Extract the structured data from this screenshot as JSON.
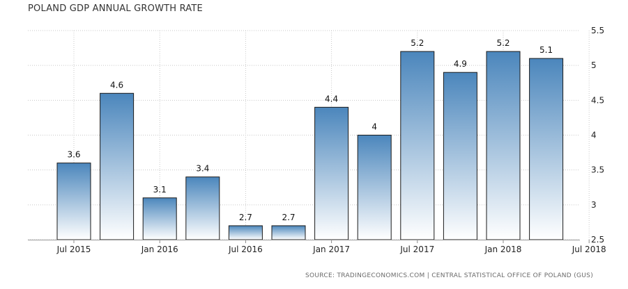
{
  "chart_data": {
    "type": "bar",
    "title": "POLAND GDP ANNUAL GROWTH RATE",
    "categories": [
      "2015-Q3",
      "2015-Q4",
      "2016-Q1",
      "2016-Q2",
      "2016-Q3",
      "2016-Q4",
      "2017-Q1",
      "2017-Q2",
      "2017-Q3",
      "2017-Q4",
      "2018-Q1",
      "2018-Q2"
    ],
    "values": [
      3.6,
      4.6,
      3.1,
      3.4,
      2.7,
      2.7,
      4.4,
      4.0,
      5.2,
      4.9,
      5.2,
      5.1
    ],
    "value_labels": [
      "3.6",
      "4.6",
      "3.1",
      "3.4",
      "2.7",
      "2.7",
      "4.4",
      "4",
      "5.2",
      "4.9",
      "5.2",
      "5.1"
    ],
    "x_tick_labels": [
      "Jul 2015",
      "Jan 2016",
      "Jul 2016",
      "Jan 2017",
      "Jul 2017",
      "Jan 2018",
      "Jul 2018"
    ],
    "y_tick_labels": [
      "2.5",
      "3",
      "3.5",
      "4",
      "4.5",
      "5",
      "5.5"
    ],
    "ylim": [
      2.5,
      5.5
    ],
    "y_axis_side": "right",
    "grid": true,
    "legend": "none",
    "colors": {
      "bar_top": "#4b86bc",
      "bar_bottom": "#ffffff",
      "bar_outline": "#1a1a1a",
      "grid": "#c8c8c8"
    }
  },
  "source": "SOURCE: TRADINGECONOMICS.COM | CENTRAL STATISTICAL OFFICE OF POLAND (GUS)"
}
